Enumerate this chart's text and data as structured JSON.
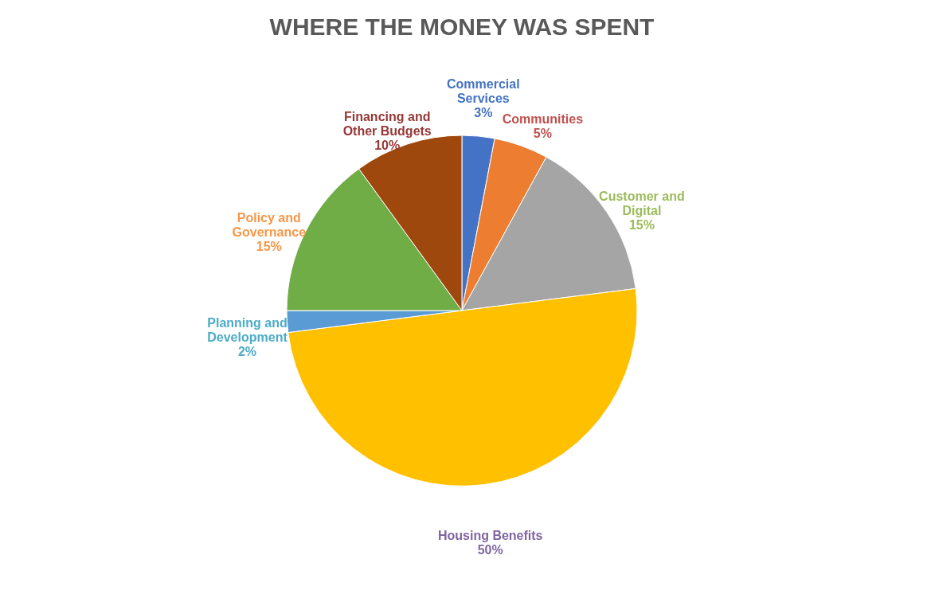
{
  "chart_data": {
    "type": "pie",
    "title": "WHERE THE MONEY WAS SPENT",
    "categories": [
      "Commercial Services",
      "Communities",
      "Customer and Digital",
      "Housing Benefits",
      "Planning and Development",
      "Policy and Governance",
      "Financing and Other Budgets"
    ],
    "values": [
      3,
      5,
      15,
      50,
      2,
      15,
      10
    ],
    "value_labels": [
      "3%",
      "5%",
      "15%",
      "50%",
      "2%",
      "15%",
      "10%"
    ],
    "colors": [
      "#4472c4",
      "#ed7d31",
      "#a5a5a5",
      "#ffc000",
      "#5b9bd5",
      "#70ad47",
      "#9e480e"
    ]
  }
}
